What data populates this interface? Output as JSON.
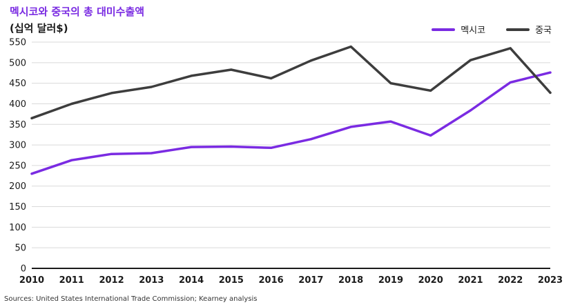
{
  "header": {
    "title": "멕시코와 중국의 총 대미수출액",
    "subtitle": "(십억 달러$)"
  },
  "source": "Sources: United States International Trade Commission; Kearney analysis",
  "chart_data": {
    "type": "line",
    "title": "멕시코와 중국의 총 대미수출액",
    "subtitle": "(십억 달러$)",
    "x": [
      "2010",
      "2011",
      "2012",
      "2013",
      "2014",
      "2015",
      "2016",
      "2017",
      "2018",
      "2019",
      "2020",
      "2021",
      "2022",
      "2023"
    ],
    "yticks": [
      0,
      50,
      100,
      150,
      200,
      250,
      300,
      350,
      400,
      450,
      500,
      550
    ],
    "ylim": [
      0,
      550
    ],
    "grid": true,
    "legend_position": "top-right",
    "series": [
      {
        "name": "멕시코",
        "color": "#7a2be2",
        "values": [
          230,
          263,
          278,
          280,
          295,
          296,
          293,
          314,
          344,
          357,
          323,
          384,
          452,
          476
        ]
      },
      {
        "name": "중국",
        "color": "#3d3d3d",
        "values": [
          365,
          400,
          426,
          441,
          468,
          483,
          462,
          505,
          539,
          450,
          432,
          506,
          535,
          427
        ]
      }
    ]
  }
}
